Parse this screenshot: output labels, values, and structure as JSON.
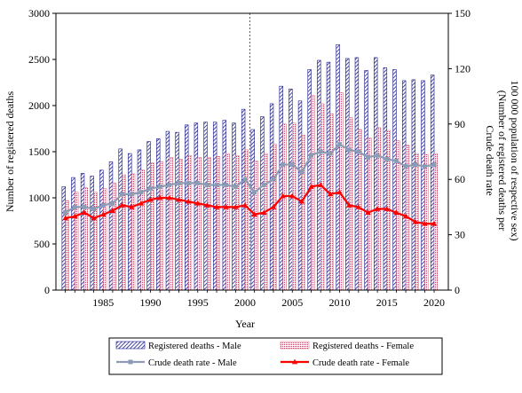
{
  "chart_data": {
    "type": "bar+line",
    "title": "",
    "xlabel": "Year",
    "ylabel_left": "Number of registered deaths",
    "ylabel_right_lines": [
      "Crude death rate",
      "(Number of registered deaths per",
      "100 000 population of respective sex)"
    ],
    "ylim_left": [
      0,
      3000
    ],
    "ylim_right": [
      0,
      150
    ],
    "yticks_left": [
      "0",
      "500",
      "1000",
      "1500",
      "2000",
      "2500",
      "3000"
    ],
    "yticks_right": [
      "0",
      "30",
      "60",
      "90",
      "120",
      "150"
    ],
    "xtick_labels": [
      "1985",
      "1990",
      "1995",
      "2000",
      "2005",
      "2010",
      "2015",
      "2020"
    ],
    "xtick_years": [
      1985,
      1990,
      1995,
      2000,
      2005,
      2010,
      2015,
      2020
    ],
    "reference_line_year": 2000.5,
    "years": [
      1981,
      1982,
      1983,
      1984,
      1985,
      1986,
      1987,
      1988,
      1989,
      1990,
      1991,
      1992,
      1993,
      1994,
      1995,
      1996,
      1997,
      1998,
      1999,
      2000,
      2001,
      2002,
      2003,
      2004,
      2005,
      2006,
      2007,
      2008,
      2009,
      2010,
      2011,
      2012,
      2013,
      2014,
      2015,
      2016,
      2017,
      2018,
      2019,
      2020
    ],
    "series": [
      {
        "name": "Registered deaths - Male",
        "kind": "bar",
        "color": "#1a1a8c",
        "values": [
          1120,
          1220,
          1265,
          1235,
          1300,
          1390,
          1530,
          1480,
          1520,
          1610,
          1640,
          1720,
          1710,
          1790,
          1810,
          1820,
          1820,
          1840,
          1810,
          1960,
          1740,
          1880,
          2020,
          2210,
          2180,
          2050,
          2390,
          2490,
          2470,
          2660,
          2510,
          2520,
          2380,
          2520,
          2410,
          2390,
          2270,
          2280,
          2270,
          2330
        ]
      },
      {
        "name": "Registered deaths - Female",
        "kind": "bar",
        "color": "#c04060",
        "values": [
          970,
          1060,
          1110,
          1060,
          1100,
          1160,
          1250,
          1260,
          1300,
          1380,
          1390,
          1440,
          1420,
          1460,
          1440,
          1440,
          1450,
          1480,
          1460,
          1520,
          1400,
          1480,
          1580,
          1800,
          1810,
          1680,
          2110,
          2020,
          1910,
          2140,
          1870,
          1740,
          1650,
          1760,
          1730,
          1620,
          1570,
          1480,
          1470,
          1480
        ]
      },
      {
        "name": "Crude death rate - Male",
        "kind": "line",
        "color": "#8c9cb4",
        "values": [
          42,
          45,
          45,
          44,
          46,
          47,
          52,
          52,
          53,
          55,
          56,
          57,
          58,
          58,
          58,
          57,
          57,
          57,
          56,
          60,
          53,
          57,
          60,
          68,
          68,
          64,
          73,
          75,
          74,
          79,
          76,
          75,
          72,
          73,
          71,
          70,
          67,
          68,
          67,
          68
        ]
      },
      {
        "name": "Crude death rate - Female",
        "kind": "line",
        "color": "#ff0000",
        "values": [
          39,
          40,
          42,
          39,
          41,
          43,
          46,
          45,
          47,
          49,
          50,
          50,
          49,
          48,
          47,
          46,
          45,
          45,
          45,
          46,
          41,
          42,
          45,
          51,
          51,
          48,
          56,
          57,
          52,
          53,
          46,
          45,
          42,
          44,
          44,
          42,
          40,
          37,
          36,
          36
        ]
      }
    ],
    "legend": {
      "position": "bottom",
      "entries": [
        "Registered deaths - Male",
        "Registered deaths - Female",
        "Crude death rate - Male",
        "Crude death rate - Female"
      ]
    },
    "grid": false
  }
}
